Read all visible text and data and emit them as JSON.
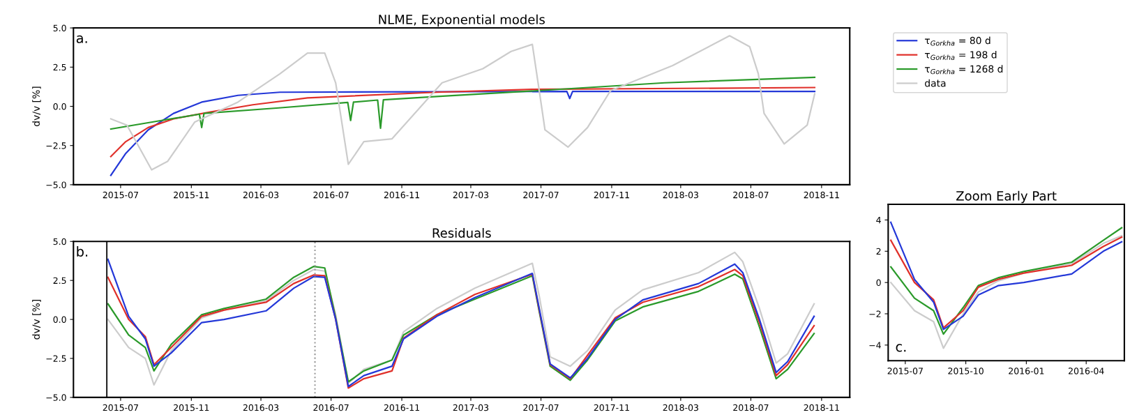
{
  "chart_data": [
    {
      "type": "line",
      "title": "NLME, Exponential models",
      "ylabel": "dv/v [%]",
      "annotations": [
        "a."
      ],
      "legend": "right",
      "xlim": [
        "2015-04-10",
        "2018-12-20"
      ],
      "ylim": [
        -5,
        5
      ],
      "xticks": [
        "2015-07",
        "2015-11",
        "2016-03",
        "2016-07",
        "2016-11",
        "2017-03",
        "2017-07",
        "2017-11",
        "2018-03",
        "2018-07",
        "2018-11"
      ],
      "yticks": [
        {
          "value": -5,
          "label": "−5.0"
        },
        {
          "value": -2.5,
          "label": "−2.5"
        },
        {
          "value": 0,
          "label": "0.0"
        },
        {
          "value": 2.5,
          "label": "2.5"
        },
        {
          "value": 5,
          "label": "5.0"
        }
      ],
      "series": [
        {
          "name": "τ$_{Gorkha}$ = 80 d",
          "color": "#2438d8",
          "x": [
            "2015-06-14",
            "2015-07-10",
            "2015-08-18",
            "2015-10-01",
            "2015-11-19",
            "2016-01-21",
            "2016-04-03",
            "2017-08-15",
            "2017-08-20",
            "2017-08-25",
            "2018-10-20"
          ],
          "values": [
            -4.4,
            -3.0,
            -1.5,
            -0.45,
            0.27,
            0.7,
            0.9,
            0.95,
            0.5,
            0.95,
            0.95
          ]
        },
        {
          "name": "τ$_{Gorkha}$ = 198 d",
          "color": "#e0302a",
          "x": [
            "2015-06-14",
            "2015-07-10",
            "2015-08-18",
            "2015-10-01",
            "2015-12-04",
            "2016-02-16",
            "2016-05-21",
            "2017-01-01",
            "2017-06-15",
            "2018-10-20"
          ],
          "values": [
            -3.2,
            -2.25,
            -1.35,
            -0.8,
            -0.36,
            0.1,
            0.54,
            0.9,
            1.08,
            1.2
          ]
        },
        {
          "name": "τ$_{Gorkha}$ = 1268 d",
          "color": "#2a9a2a",
          "x": [
            "2015-06-14",
            "2015-08-25",
            "2015-11-15",
            "2015-11-19",
            "2015-11-23",
            "2016-04-01",
            "2016-07-30",
            "2016-08-04",
            "2016-08-09",
            "2016-09-20",
            "2016-09-25",
            "2016-09-30",
            "2017-01-01",
            "2017-06-25",
            "2018-02-01",
            "2018-10-20"
          ],
          "values": [
            -1.45,
            -1.0,
            -0.5,
            -1.35,
            -0.45,
            -0.1,
            0.25,
            -0.9,
            0.27,
            0.4,
            -1.4,
            0.42,
            0.63,
            1.0,
            1.5,
            1.85
          ]
        },
        {
          "name": "data",
          "color": "#cccccc",
          "x": [
            "2015-06-14",
            "2015-07-12",
            "2015-08-24",
            "2015-09-21",
            "2015-11-07",
            "2016-01-21",
            "2016-04-03",
            "2016-05-21",
            "2016-06-20",
            "2016-07-09",
            "2016-07-31",
            "2016-08-27",
            "2016-10-15",
            "2016-12-02",
            "2017-01-10",
            "2017-03-22",
            "2017-05-10",
            "2017-06-16",
            "2017-06-28",
            "2017-07-08",
            "2017-08-17",
            "2017-09-20",
            "2017-10-30",
            "2018-02-15",
            "2018-05-25",
            "2018-06-29",
            "2018-07-14",
            "2018-07-24",
            "2018-08-28",
            "2018-10-07",
            "2018-10-20"
          ],
          "values": [
            -0.8,
            -1.2,
            -4.05,
            -3.5,
            -1.0,
            0.27,
            2.07,
            3.4,
            3.4,
            1.5,
            -3.7,
            -2.25,
            -2.07,
            -0.1,
            1.5,
            2.4,
            3.5,
            3.95,
            1.0,
            -1.5,
            -2.6,
            -1.35,
            1.0,
            2.6,
            4.5,
            3.8,
            2.07,
            -0.45,
            -2.4,
            -1.2,
            0.8
          ]
        }
      ]
    },
    {
      "type": "line",
      "title": "Residuals",
      "ylabel": "dv/v [%]",
      "annotations": [
        "b."
      ],
      "xlim": [
        "2015-04-10",
        "2018-12-20"
      ],
      "ylim": [
        -5,
        5
      ],
      "xticks": [
        "2015-07",
        "2015-11",
        "2016-03",
        "2016-07",
        "2016-11",
        "2017-03",
        "2017-07",
        "2017-11",
        "2018-03",
        "2018-07",
        "2018-11"
      ],
      "yticks": [
        {
          "value": -5,
          "label": "−5.0"
        },
        {
          "value": -2.5,
          "label": "−2.5"
        },
        {
          "value": 0,
          "label": "0.0"
        },
        {
          "value": 2.5,
          "label": "2.5"
        },
        {
          "value": 5,
          "label": "5.0"
        }
      ],
      "ref_lines": [
        {
          "axis": "x",
          "value": "2015-06-07",
          "label": null,
          "color": "#222222",
          "line_style": "solid"
        },
        {
          "axis": "x",
          "value": "2016-06-03",
          "label": null,
          "color": "#999999",
          "line_style": "dotted"
        }
      ],
      "x": [
        "2015-06-09",
        "2015-07-15",
        "2015-08-13",
        "2015-08-28",
        "2015-09-27",
        "2015-11-19",
        "2015-12-28",
        "2016-03-10",
        "2016-04-27",
        "2016-06-01",
        "2016-06-20",
        "2016-07-09",
        "2016-07-31",
        "2016-08-27",
        "2016-10-15",
        "2016-11-04",
        "2017-01-01",
        "2017-03-08",
        "2017-06-16",
        "2017-06-28",
        "2017-07-17",
        "2017-08-21",
        "2017-09-20",
        "2017-11-07",
        "2017-12-25",
        "2018-04-01",
        "2018-06-03",
        "2018-06-17",
        "2018-07-16",
        "2018-08-14",
        "2018-09-03",
        "2018-10-19"
      ],
      "series": [
        {
          "color": "#cccccc",
          "values": [
            0.0,
            -1.8,
            -2.5,
            -4.2,
            -2.0,
            0.1,
            0.6,
            1.2,
            2.5,
            3.2,
            3.1,
            0.3,
            -4.1,
            -3.2,
            -2.6,
            -0.8,
            0.7,
            2.0,
            3.6,
            1.5,
            -2.4,
            -3.0,
            -2.0,
            0.6,
            1.9,
            3.0,
            4.3,
            3.7,
            0.7,
            -2.8,
            -2.2,
            1.0
          ]
        },
        {
          "color": "#2a9a2a",
          "values": [
            1.0,
            -1.0,
            -1.8,
            -3.3,
            -1.6,
            0.3,
            0.7,
            1.3,
            2.7,
            3.4,
            3.3,
            0.1,
            -4.0,
            -3.3,
            -2.6,
            -1.0,
            0.3,
            1.3,
            2.8,
            0.5,
            -3.0,
            -3.9,
            -2.6,
            -0.1,
            0.8,
            1.8,
            2.9,
            2.6,
            -0.5,
            -3.8,
            -3.2,
            -0.9
          ]
        },
        {
          "color": "#e0302a",
          "values": [
            2.7,
            0.0,
            -1.1,
            -2.9,
            -1.8,
            0.2,
            0.6,
            1.1,
            2.3,
            2.85,
            2.8,
            0.0,
            -4.4,
            -3.8,
            -3.3,
            -1.2,
            0.3,
            1.6,
            2.9,
            0.6,
            -2.9,
            -3.8,
            -2.3,
            0.1,
            1.1,
            2.1,
            3.2,
            2.8,
            -0.2,
            -3.6,
            -2.9,
            -0.4
          ]
        },
        {
          "color": "#2438d8",
          "values": [
            3.85,
            0.2,
            -1.25,
            -3.0,
            -2.15,
            -0.2,
            0.0,
            0.55,
            2.0,
            2.75,
            2.7,
            0.0,
            -4.3,
            -3.6,
            -3.0,
            -1.25,
            0.2,
            1.4,
            2.95,
            0.7,
            -2.85,
            -3.75,
            -2.5,
            0.0,
            1.25,
            2.3,
            3.55,
            3.0,
            0.0,
            -3.4,
            -2.7,
            0.2
          ]
        }
      ]
    },
    {
      "type": "line",
      "title": "Zoom Early Part",
      "annotations": [
        "c."
      ],
      "xlim": [
        "2015-06-05",
        "2016-05-29"
      ],
      "ylim": [
        -5,
        5
      ],
      "xticks": [
        "2015-07",
        "2015-10",
        "2016-01",
        "2016-04"
      ],
      "yticks": [
        {
          "value": -4,
          "label": "−4"
        },
        {
          "value": -2,
          "label": "−2"
        },
        {
          "value": 0,
          "label": "0"
        },
        {
          "value": 2,
          "label": "2"
        },
        {
          "value": 4,
          "label": "4"
        }
      ],
      "x": [
        "2015-06-09",
        "2015-07-15",
        "2015-08-13",
        "2015-08-28",
        "2015-09-27",
        "2015-10-20",
        "2015-11-19",
        "2015-12-28",
        "2016-03-10",
        "2016-04-27",
        "2016-05-25"
      ],
      "series": [
        {
          "color": "#cccccc",
          "values": [
            0.0,
            -1.8,
            -2.5,
            -4.2,
            -2.0,
            -0.6,
            0.1,
            0.6,
            1.2,
            2.5,
            3.0
          ]
        },
        {
          "color": "#2a9a2a",
          "values": [
            1.0,
            -1.0,
            -1.8,
            -3.3,
            -1.6,
            -0.2,
            0.3,
            0.7,
            1.3,
            2.7,
            3.5
          ]
        },
        {
          "color": "#e0302a",
          "values": [
            2.7,
            0.0,
            -1.1,
            -2.9,
            -1.8,
            -0.3,
            0.2,
            0.6,
            1.1,
            2.3,
            2.9
          ]
        },
        {
          "color": "#2438d8",
          "values": [
            3.85,
            0.2,
            -1.25,
            -3.0,
            -2.15,
            -0.8,
            -0.2,
            0.0,
            0.55,
            2.0,
            2.6
          ]
        }
      ]
    }
  ]
}
